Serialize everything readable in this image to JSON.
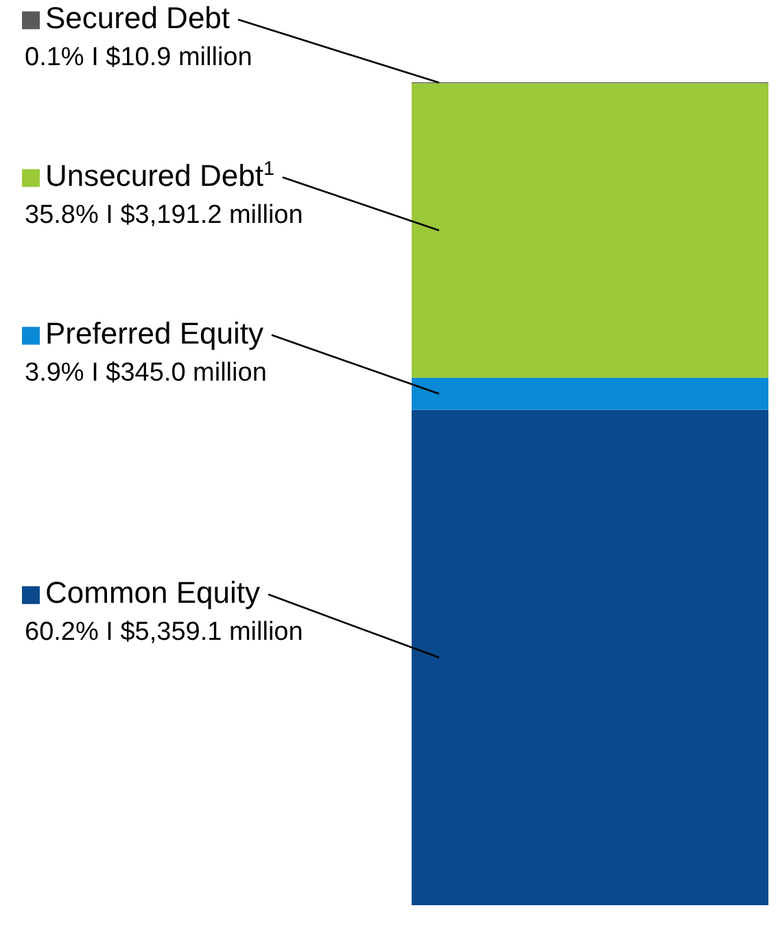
{
  "chart_data": {
    "type": "bar",
    "stacked": true,
    "legend": "left",
    "categories": [
      null
    ],
    "series": [
      {
        "name": "Common Equity",
        "color": "#0a4a8c",
        "values": [
          60.2
        ],
        "value_labels": [
          "60.2% I $5,359.1 million"
        ]
      },
      {
        "name": "Preferred Equity",
        "color": "#0a8ad6",
        "values": [
          3.9
        ],
        "value_labels": [
          "3.9% I $345.0 million"
        ]
      },
      {
        "name": "Unsecured Debt$^{1}$",
        "color": "#9bc93a",
        "values": [
          35.8
        ],
        "value_labels": [
          "35.8% I $3,191.2 million"
        ]
      },
      {
        "name": "Secured Debt",
        "color": "#5a5a5a",
        "values": [
          0.1
        ],
        "value_labels": [
          "0.1% I $10.9 million"
        ]
      }
    ]
  }
}
